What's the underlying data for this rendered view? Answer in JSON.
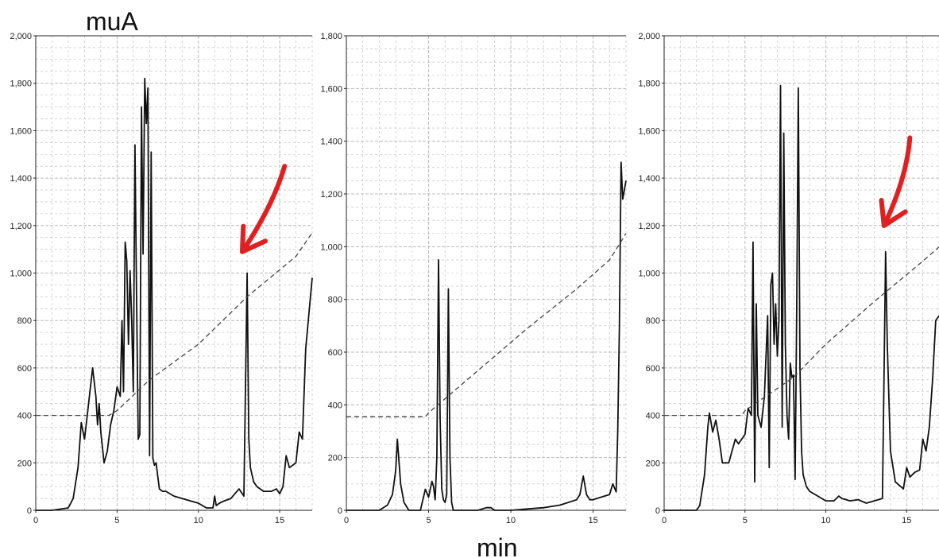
{
  "figure": {
    "y_unit_label": "muA",
    "x_unit_label": "min",
    "annotation_color": "#e02020",
    "trace_color": "#111111",
    "gradient_color": "#444444",
    "grid_color": "#bbbbbb"
  },
  "chart_data": [
    {
      "type": "line",
      "panel": "left",
      "xlim": [
        0,
        17
      ],
      "ylim": [
        0,
        2000
      ],
      "x_ticks": [
        0,
        5,
        10,
        15
      ],
      "x_tick_labels": [
        "0",
        "5",
        "10",
        "15"
      ],
      "y_ticks": [
        0,
        200,
        400,
        600,
        800,
        1000,
        1200,
        1400,
        1600,
        1800,
        2000
      ],
      "y_tick_labels": [
        "0",
        "200",
        "400",
        "600",
        "800",
        "1,000",
        "1,200",
        "1,400",
        "1,600",
        "1,800",
        "2,000"
      ],
      "grid": true,
      "arrow": {
        "from": [
          15.3,
          1450
        ],
        "to": [
          12.7,
          1090
        ]
      },
      "series": [
        {
          "role": "trace",
          "x": [
            0,
            1,
            2,
            2.3,
            2.6,
            2.8,
            3.0,
            3.2,
            3.5,
            3.7,
            3.8,
            3.9,
            4.0,
            4.2,
            4.4,
            4.6,
            4.8,
            5.0,
            5.2,
            5.3,
            5.4,
            5.5,
            5.6,
            5.7,
            5.8,
            5.9,
            6.0,
            6.1,
            6.2,
            6.3,
            6.4,
            6.5,
            6.6,
            6.7,
            6.8,
            6.9,
            7.0,
            7.1,
            7.2,
            7.3,
            7.4,
            7.6,
            7.8,
            8.0,
            8.5,
            9.0,
            9.5,
            10.0,
            10.5,
            10.9,
            11.0,
            11.1,
            11.3,
            11.6,
            12.0,
            12.5,
            12.8,
            13.0,
            13.1,
            13.2,
            13.4,
            13.6,
            13.8,
            14.0,
            14.5,
            14.8,
            15.0,
            15.2,
            15.4,
            15.6,
            15.8,
            16.0,
            16.2,
            16.4,
            16.6,
            16.8,
            17.0
          ],
          "y": [
            0,
            0,
            10,
            50,
            180,
            370,
            300,
            420,
            600,
            480,
            360,
            450,
            330,
            200,
            250,
            360,
            420,
            520,
            480,
            800,
            500,
            1130,
            1050,
            700,
            1010,
            800,
            500,
            1540,
            900,
            300,
            320,
            1700,
            1080,
            1820,
            1630,
            1780,
            230,
            1510,
            220,
            190,
            200,
            90,
            80,
            80,
            60,
            50,
            40,
            30,
            10,
            10,
            60,
            20,
            30,
            40,
            50,
            90,
            60,
            1000,
            300,
            180,
            120,
            100,
            90,
            80,
            80,
            90,
            70,
            100,
            230,
            180,
            190,
            200,
            330,
            300,
            680,
            830,
            980
          ]
        },
        {
          "role": "gradient",
          "x": [
            0,
            4.5,
            5.0,
            7.0,
            10.0,
            13.0,
            16.0,
            17.0
          ],
          "y": [
            400,
            400,
            420,
            550,
            700,
            900,
            1070,
            1170
          ]
        }
      ]
    },
    {
      "type": "line",
      "panel": "middle",
      "xlim": [
        0,
        17
      ],
      "ylim": [
        0,
        1800
      ],
      "x_ticks": [
        0,
        5,
        10,
        15
      ],
      "x_tick_labels": [
        "0",
        "5",
        "10",
        "15"
      ],
      "y_ticks": [
        0,
        200,
        400,
        600,
        800,
        1000,
        1200,
        1400,
        1600,
        1800
      ],
      "y_tick_labels": [
        "0",
        "200",
        "400",
        "600",
        "800",
        "1,000",
        "1,200",
        "1,400",
        "1,600",
        "1,800"
      ],
      "grid": true,
      "series": [
        {
          "role": "trace",
          "x": [
            0,
            2.0,
            2.5,
            2.8,
            3.0,
            3.1,
            3.3,
            3.5,
            3.8,
            4.5,
            4.8,
            5.0,
            5.2,
            5.3,
            5.4,
            5.5,
            5.6,
            5.7,
            5.8,
            5.9,
            6.0,
            6.1,
            6.2,
            6.3,
            6.4,
            6.5,
            7.0,
            8.0,
            8.5,
            8.8,
            9.0,
            9.3,
            10.0,
            11.0,
            12.0,
            13.0,
            14.0,
            14.2,
            14.4,
            14.6,
            14.8,
            15.0,
            15.5,
            16.0,
            16.2,
            16.4,
            16.5,
            16.6,
            16.7,
            16.8,
            17.0
          ],
          "y": [
            0,
            0,
            20,
            60,
            150,
            270,
            100,
            30,
            0,
            0,
            80,
            50,
            110,
            90,
            40,
            200,
            950,
            350,
            80,
            40,
            30,
            60,
            840,
            200,
            30,
            0,
            0,
            0,
            10,
            10,
            0,
            0,
            0,
            5,
            10,
            20,
            40,
            60,
            130,
            60,
            40,
            40,
            50,
            60,
            100,
            70,
            300,
            700,
            1320,
            1180,
            1250
          ]
        },
        {
          "role": "gradient",
          "x": [
            0,
            4.8,
            5.0,
            8.0,
            11.0,
            14.0,
            16.0,
            17.0
          ],
          "y": [
            355,
            355,
            370,
            530,
            690,
            840,
            950,
            1050
          ]
        }
      ]
    },
    {
      "type": "line",
      "panel": "right",
      "xlim": [
        0,
        17
      ],
      "ylim": [
        0,
        2000
      ],
      "x_ticks": [
        0,
        5,
        10,
        15
      ],
      "x_tick_labels": [
        "0",
        "5",
        "10",
        "15"
      ],
      "y_ticks": [
        0,
        200,
        400,
        600,
        800,
        1000,
        1200,
        1400,
        1600,
        1800,
        2000
      ],
      "y_tick_labels": [
        "0",
        "200",
        "400",
        "600",
        "800",
        "1,000",
        "1,200",
        "1,400",
        "1,600",
        "1,800",
        "2,000"
      ],
      "grid": true,
      "arrow": {
        "from": [
          15.2,
          1570
        ],
        "to": [
          13.6,
          1200
        ]
      },
      "series": [
        {
          "role": "trace",
          "x": [
            0,
            1,
            2.0,
            2.2,
            2.5,
            2.7,
            2.8,
            3.0,
            3.2,
            3.4,
            3.6,
            4.0,
            4.2,
            4.4,
            4.6,
            4.8,
            5.0,
            5.2,
            5.4,
            5.5,
            5.6,
            5.7,
            5.8,
            6.0,
            6.2,
            6.4,
            6.5,
            6.6,
            6.7,
            6.8,
            6.9,
            7.0,
            7.1,
            7.2,
            7.3,
            7.4,
            7.5,
            7.6,
            7.7,
            7.8,
            7.9,
            8.0,
            8.1,
            8.2,
            8.3,
            8.4,
            8.5,
            8.6,
            8.8,
            9.0,
            9.5,
            10.0,
            10.5,
            10.8,
            11.0,
            11.5,
            12.0,
            12.5,
            13.0,
            13.5,
            13.7,
            13.8,
            14.0,
            14.3,
            14.8,
            15.0,
            15.2,
            15.5,
            15.8,
            16.0,
            16.2,
            16.4,
            16.6,
            16.8,
            17.0
          ],
          "y": [
            0,
            0,
            0,
            20,
            150,
            350,
            410,
            330,
            380,
            300,
            200,
            200,
            250,
            300,
            280,
            300,
            320,
            430,
            400,
            1130,
            120,
            870,
            400,
            350,
            480,
            820,
            180,
            950,
            1000,
            700,
            870,
            650,
            800,
            1790,
            350,
            1590,
            700,
            400,
            300,
            620,
            560,
            570,
            130,
            850,
            1780,
            600,
            250,
            150,
            100,
            80,
            60,
            40,
            40,
            60,
            50,
            40,
            45,
            30,
            40,
            50,
            1090,
            700,
            250,
            120,
            90,
            180,
            140,
            160,
            170,
            300,
            250,
            350,
            550,
            800,
            820
          ]
        },
        {
          "role": "gradient",
          "x": [
            0,
            4.8,
            5.0,
            8.0,
            10.0,
            13.0,
            16.0,
            17.0
          ],
          "y": [
            400,
            400,
            420,
            560,
            700,
            880,
            1050,
            1110
          ]
        }
      ]
    }
  ]
}
